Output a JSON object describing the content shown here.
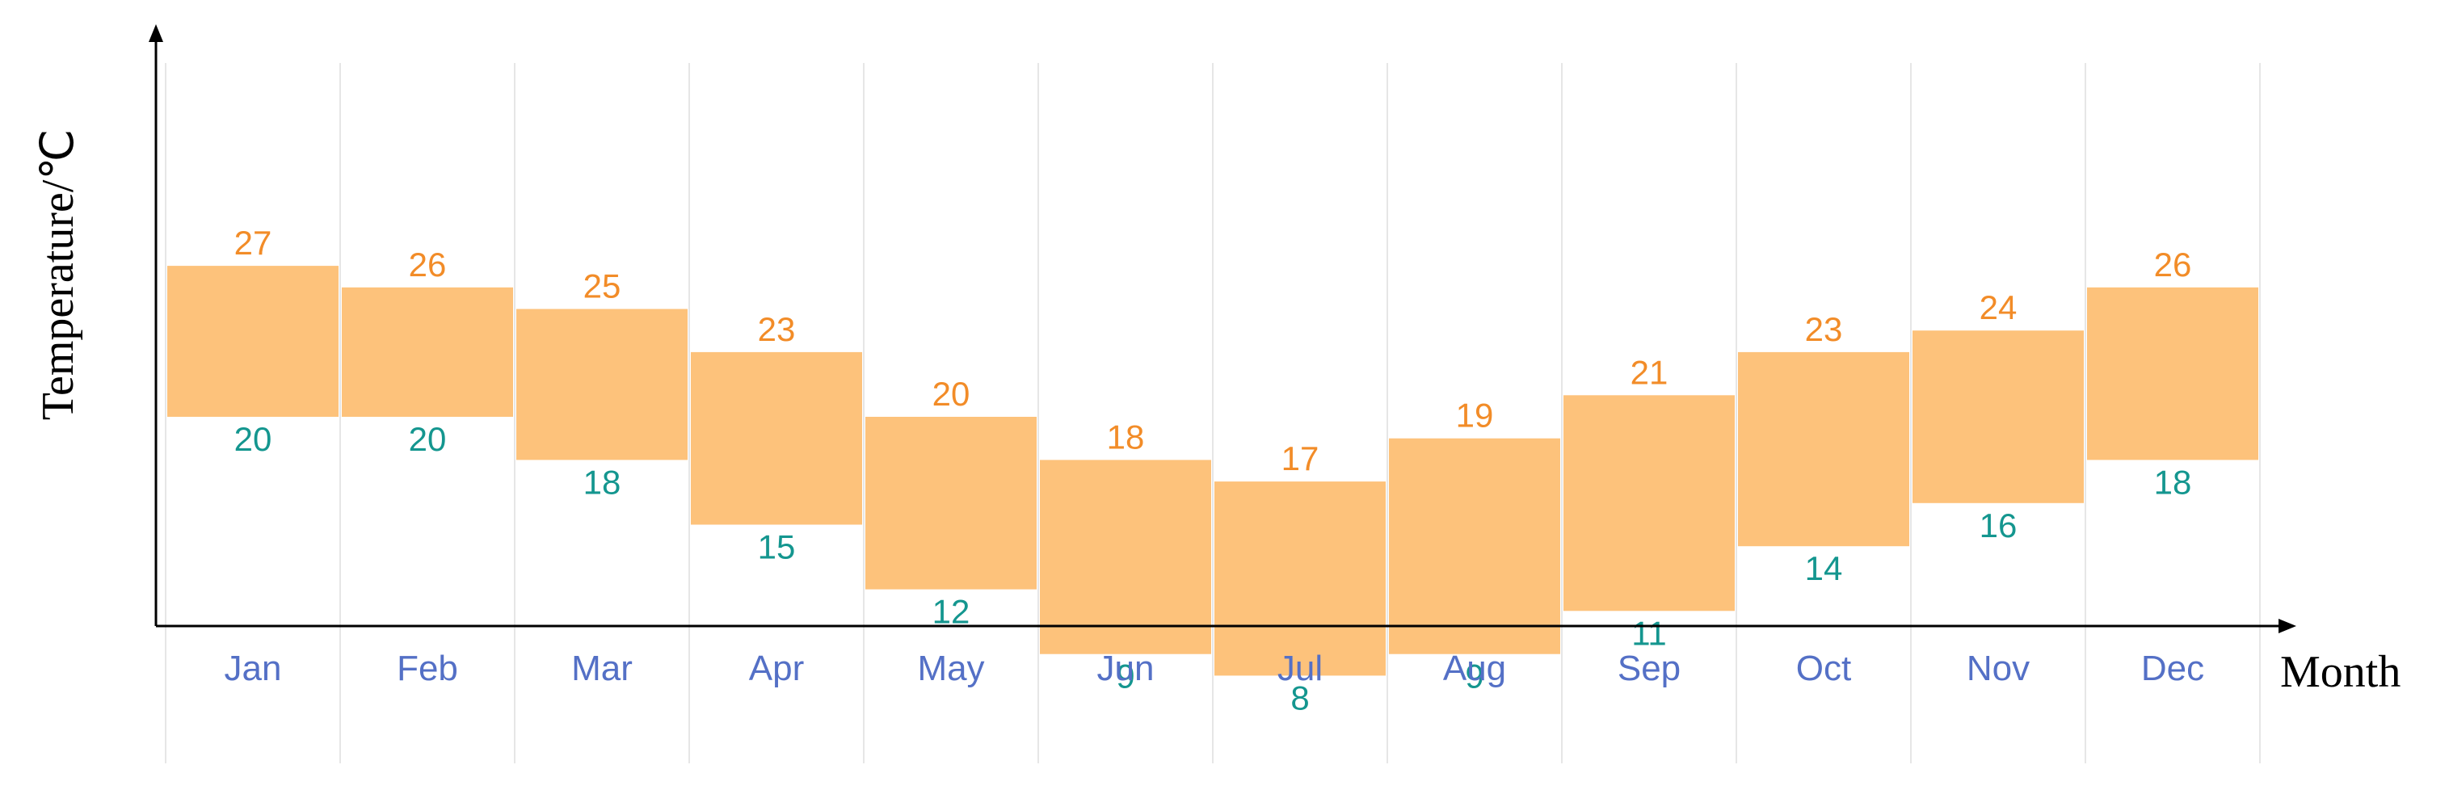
{
  "chart_data": {
    "type": "floating-bar",
    "categories": [
      "Jan",
      "Feb",
      "Mar",
      "Apr",
      "May",
      "Jun",
      "Jul",
      "Aug",
      "Sep",
      "Oct",
      "Nov",
      "Dec"
    ],
    "high": [
      27,
      26,
      25,
      23,
      20,
      18,
      17,
      19,
      21,
      23,
      24,
      26
    ],
    "low": [
      20,
      20,
      18,
      15,
      12,
      9,
      8,
      9,
      11,
      14,
      16,
      18
    ],
    "xlabel": "Month",
    "ylabel": "Temperature/℃",
    "ylim": [
      2,
      32
    ],
    "grid": "vertical",
    "colors": {
      "bar": "#FDC27B",
      "high_label": "#F28C28",
      "low_label": "#14968F",
      "category_label": "#5470C6",
      "grid": "#E6E6E6",
      "axis": "#000000"
    }
  }
}
